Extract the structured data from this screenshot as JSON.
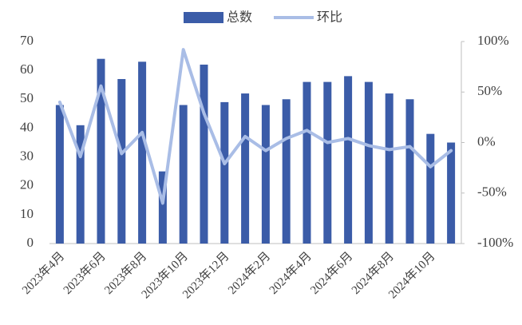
{
  "chart_data": {
    "type": "bar_line",
    "categories": [
      "2023年4月",
      null,
      "2023年6月",
      null,
      "2023年8月",
      null,
      "2023年10月",
      null,
      "2023年12月",
      null,
      "2024年2月",
      null,
      "2024年4月",
      null,
      "2024年6月",
      null,
      "2024年8月",
      null,
      "2024年10月",
      null
    ],
    "series": [
      {
        "name": "总数",
        "color": "#3b5ca8",
        "type": "bar",
        "values": [
          48,
          41,
          64,
          57,
          63,
          25,
          48,
          62,
          49,
          52,
          48,
          50,
          56,
          56,
          58,
          56,
          52,
          50,
          38,
          35
        ]
      },
      {
        "name": "环比",
        "color": "#a9bde6",
        "type": "line",
        "axis": "y2",
        "values": [
          40,
          -14,
          56,
          -11,
          10,
          -60,
          92,
          29,
          -21,
          6,
          -8,
          4,
          12,
          0,
          4,
          -3,
          -7,
          -4,
          -24,
          -8
        ]
      }
    ],
    "ylim": [
      0,
      70
    ],
    "yticks": [
      0,
      10,
      20,
      30,
      40,
      50,
      60,
      70
    ],
    "y2lim": [
      -100,
      100
    ],
    "y2ticks": [
      {
        "value": -100,
        "label": "-100%"
      },
      {
        "value": -50,
        "label": "-50%"
      },
      {
        "value": 0,
        "label": "0%"
      },
      {
        "value": 50,
        "label": "50%"
      },
      {
        "value": 100,
        "label": "100%"
      }
    ],
    "legend": "top"
  }
}
